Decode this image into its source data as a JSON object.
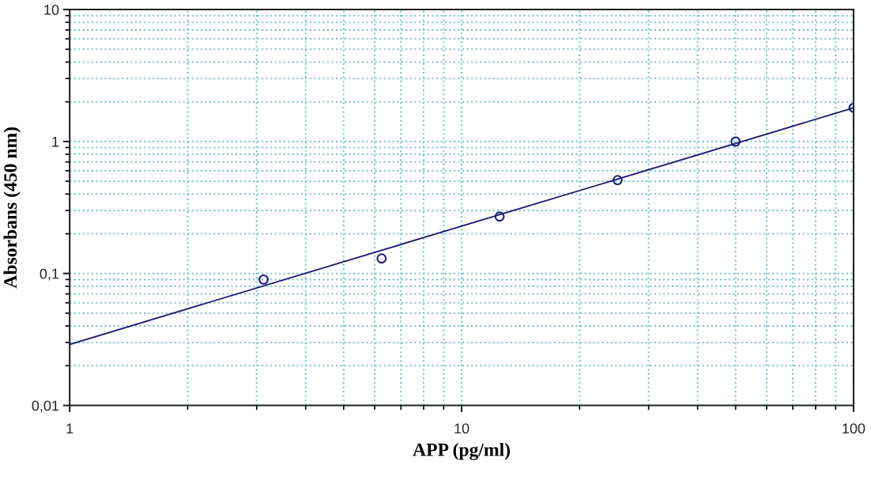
{
  "chart_data": {
    "type": "scatter",
    "xlabel": "APP (pg/ml)",
    "ylabel": "Absorbans (450 nm)",
    "log": "xy",
    "xlim": [
      1,
      100
    ],
    "xticks": [
      1,
      10,
      100
    ],
    "ylim": [
      0.01,
      10
    ],
    "yticks": [
      {
        "value": 0.01,
        "label": "0,01"
      },
      {
        "value": 0.1,
        "label": "0,1"
      },
      1,
      10
    ],
    "grid": true,
    "series": [
      {
        "marker": "circle",
        "color": "#1c1c80",
        "x": [
          3.125,
          6.25,
          12.5,
          25,
          50,
          100
        ],
        "values": [
          0.09,
          0.13,
          0.27,
          0.51,
          1.0,
          1.8
        ]
      },
      {
        "type": "line",
        "color": "#1c1c6e",
        "x": [
          1,
          100
        ],
        "values": [
          0.029,
          1.8
        ]
      }
    ]
  }
}
